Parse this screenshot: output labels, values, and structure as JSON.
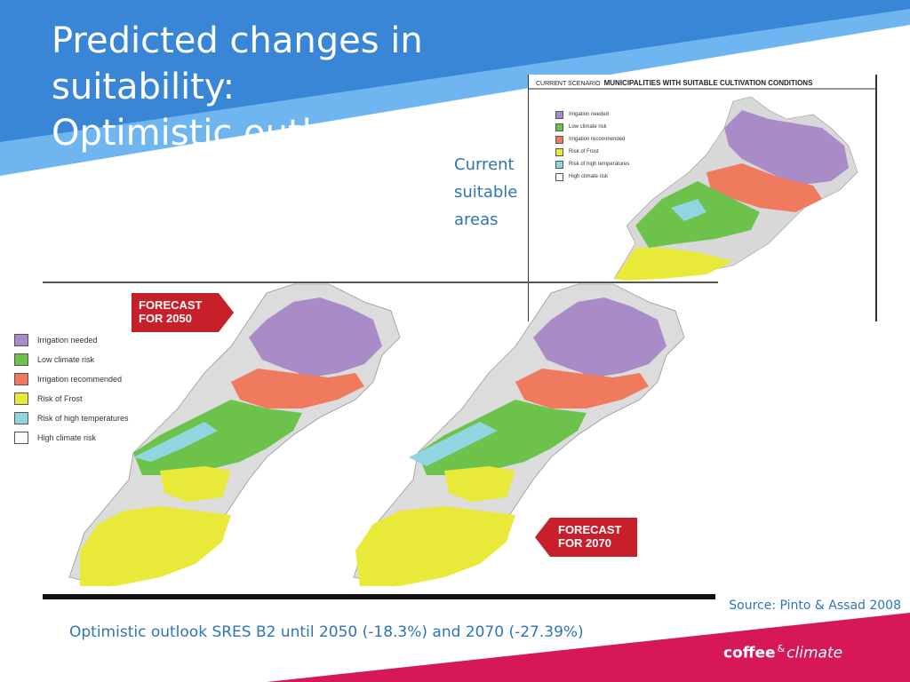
{
  "slide": {
    "title_line1": "Predicted changes in suitability:",
    "title_line2": "Optimistic outlook",
    "current_label": [
      "Current",
      "suitable",
      "areas"
    ],
    "source": "Source: Pinto & Assad 2008",
    "caption": "Optimistic outlook SRES B2 until 2050 (-18.3%) and 2070 (-27.39%)",
    "brand": {
      "word1": "coffee",
      "amp": "&",
      "word2": "climate"
    }
  },
  "inset": {
    "scenario": "CURRENT SCENARIO",
    "heading": "MUNICIPALITIES WITH SUITABLE CULTIVATION CONDITIONS"
  },
  "forecasts": {
    "f2050": [
      "FORECAST",
      "FOR 2050"
    ],
    "f2070": [
      "FORECAST",
      "FOR 2070"
    ]
  },
  "legend": [
    {
      "label": "Irrigation needed",
      "color": "#a98bc8"
    },
    {
      "label": "Low climate risk",
      "color": "#6cc24a"
    },
    {
      "label": "Irrigation recommended",
      "color": "#ef7a5e"
    },
    {
      "label": "Risk of Frost",
      "color": "#e9e93a"
    },
    {
      "label": "Risk of high temperatures",
      "color": "#8fd6e0"
    },
    {
      "label": "High climate risk",
      "color": "#ffffff"
    }
  ],
  "colors": {
    "slide_blue": "#3a86d6",
    "light_blue": "#6fb6f0",
    "text_blue": "#2e75b6",
    "brand_magenta": "#d6185a",
    "forecast_red": "#c8202a"
  }
}
